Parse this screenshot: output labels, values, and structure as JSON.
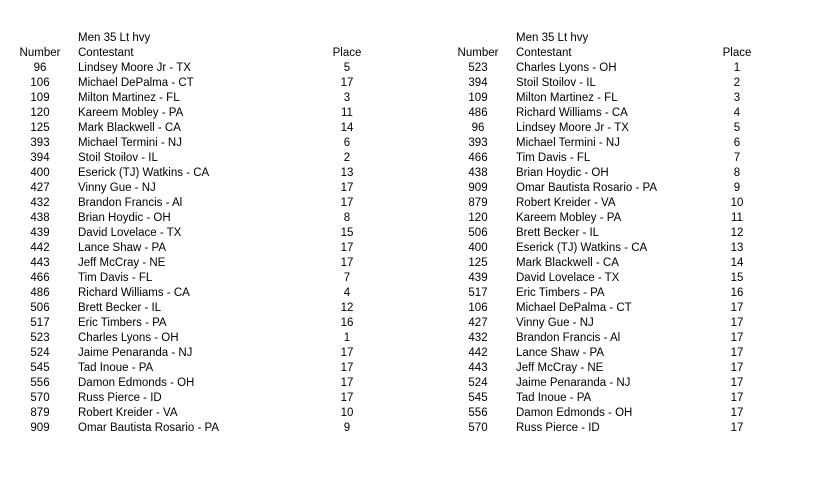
{
  "tables": [
    {
      "title": "Men 35 Lt hvy",
      "headers": {
        "number": "Number",
        "contestant": "Contestant",
        "place": "Place"
      },
      "rows": [
        {
          "number": "96",
          "contestant": "Lindsey Moore Jr - TX",
          "place": "5"
        },
        {
          "number": "106",
          "contestant": "Michael DePalma - CT",
          "place": "17"
        },
        {
          "number": "109",
          "contestant": "Milton Martinez - FL",
          "place": "3"
        },
        {
          "number": "120",
          "contestant": "Kareem Mobley - PA",
          "place": "11"
        },
        {
          "number": "125",
          "contestant": "Mark Blackwell - CA",
          "place": "14"
        },
        {
          "number": "393",
          "contestant": "Michael Termini - NJ",
          "place": "6"
        },
        {
          "number": "394",
          "contestant": "Stoil Stoilov - IL",
          "place": "2"
        },
        {
          "number": "400",
          "contestant": "Eserick (TJ) Watkins - CA",
          "place": "13"
        },
        {
          "number": "427",
          "contestant": "Vinny Gue - NJ",
          "place": "17"
        },
        {
          "number": "432",
          "contestant": "Brandon Francis - Al",
          "place": "17"
        },
        {
          "number": "438",
          "contestant": "Brian Hoydic - OH",
          "place": "8"
        },
        {
          "number": "439",
          "contestant": "David Lovelace - TX",
          "place": "15"
        },
        {
          "number": "442",
          "contestant": "Lance Shaw - PA",
          "place": "17"
        },
        {
          "number": "443",
          "contestant": "Jeff McCray - NE",
          "place": "17"
        },
        {
          "number": "466",
          "contestant": "Tim Davis - FL",
          "place": "7"
        },
        {
          "number": "486",
          "contestant": "Richard Williams - CA",
          "place": "4"
        },
        {
          "number": "506",
          "contestant": "Brett Becker - IL",
          "place": "12"
        },
        {
          "number": "517",
          "contestant": "Eric Timbers - PA",
          "place": "16"
        },
        {
          "number": "523",
          "contestant": "Charles Lyons - OH",
          "place": "1"
        },
        {
          "number": "524",
          "contestant": "Jaime Penaranda - NJ",
          "place": "17"
        },
        {
          "number": "545",
          "contestant": "Tad Inoue - PA",
          "place": "17"
        },
        {
          "number": "556",
          "contestant": "Damon Edmonds - OH",
          "place": "17"
        },
        {
          "number": "570",
          "contestant": "Russ Pierce - ID",
          "place": "17"
        },
        {
          "number": "879",
          "contestant": "Robert Kreider - VA",
          "place": "10"
        },
        {
          "number": "909",
          "contestant": "Omar Bautista Rosario - PA",
          "place": "9"
        }
      ]
    },
    {
      "title": "Men 35 Lt hvy",
      "headers": {
        "number": "Number",
        "contestant": "Contestant",
        "place": "Place"
      },
      "rows": [
        {
          "number": "523",
          "contestant": "Charles Lyons - OH",
          "place": "1"
        },
        {
          "number": "394",
          "contestant": "Stoil Stoilov - IL",
          "place": "2"
        },
        {
          "number": "109",
          "contestant": "Milton Martinez - FL",
          "place": "3"
        },
        {
          "number": "486",
          "contestant": "Richard Williams - CA",
          "place": "4"
        },
        {
          "number": "96",
          "contestant": "Lindsey Moore Jr - TX",
          "place": "5"
        },
        {
          "number": "393",
          "contestant": "Michael Termini - NJ",
          "place": "6"
        },
        {
          "number": "466",
          "contestant": "Tim Davis - FL",
          "place": "7"
        },
        {
          "number": "438",
          "contestant": "Brian Hoydic - OH",
          "place": "8"
        },
        {
          "number": "909",
          "contestant": "Omar Bautista Rosario - PA",
          "place": "9"
        },
        {
          "number": "879",
          "contestant": "Robert Kreider - VA",
          "place": "10"
        },
        {
          "number": "120",
          "contestant": "Kareem Mobley - PA",
          "place": "11"
        },
        {
          "number": "506",
          "contestant": "Brett Becker - IL",
          "place": "12"
        },
        {
          "number": "400",
          "contestant": "Eserick (TJ) Watkins - CA",
          "place": "13"
        },
        {
          "number": "125",
          "contestant": "Mark Blackwell - CA",
          "place": "14"
        },
        {
          "number": "439",
          "contestant": "David Lovelace - TX",
          "place": "15"
        },
        {
          "number": "517",
          "contestant": "Eric Timbers - PA",
          "place": "16"
        },
        {
          "number": "106",
          "contestant": "Michael DePalma - CT",
          "place": "17"
        },
        {
          "number": "427",
          "contestant": "Vinny Gue - NJ",
          "place": "17"
        },
        {
          "number": "432",
          "contestant": "Brandon Francis - Al",
          "place": "17"
        },
        {
          "number": "442",
          "contestant": "Lance Shaw - PA",
          "place": "17"
        },
        {
          "number": "443",
          "contestant": "Jeff McCray - NE",
          "place": "17"
        },
        {
          "number": "524",
          "contestant": "Jaime Penaranda - NJ",
          "place": "17"
        },
        {
          "number": "545",
          "contestant": "Tad Inoue - PA",
          "place": "17"
        },
        {
          "number": "556",
          "contestant": "Damon Edmonds - OH",
          "place": "17"
        },
        {
          "number": "570",
          "contestant": "Russ Pierce - ID",
          "place": "17"
        }
      ]
    }
  ]
}
